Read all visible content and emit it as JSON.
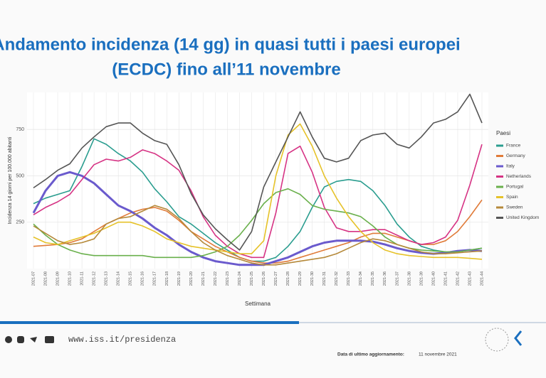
{
  "chart_data": {
    "type": "line",
    "title": [
      "Andamento incidenza (14 gg) in quasi tutti i paesi europei",
      "(ECDC) fino all’11 novembre"
    ],
    "y_label": "Incidenza 14 giorni per 100.000 abitanti",
    "x_label": "Settimana",
    "legend_title": "Paesi",
    "grid": true,
    "ylim": [
      0,
      950
    ],
    "yticks": [
      250,
      500,
      750
    ],
    "categories": [
      "2021-07",
      "2021-08",
      "2021-09",
      "2021-10",
      "2021-11",
      "2021-12",
      "2021-13",
      "2021-14",
      "2021-15",
      "2021-16",
      "2021-17",
      "2021-18",
      "2021-19",
      "2021-20",
      "2021-21",
      "2021-22",
      "2021-23",
      "2021-24",
      "2021-25",
      "2021-26",
      "2021-27",
      "2021-28",
      "2021-29",
      "2021-30",
      "2021-31",
      "2021-32",
      "2021-33",
      "2021-34",
      "2021-35",
      "2021-36",
      "2021-37",
      "2021-38",
      "2021-39",
      "2021-40",
      "2021-41",
      "2021-42",
      "2021-43",
      "2021-44"
    ],
    "series": [
      {
        "name": "France",
        "color": "#2a9d8f",
        "values": [
          350,
          380,
          400,
          420,
          550,
          700,
          670,
          620,
          580,
          520,
          430,
          360,
          280,
          240,
          190,
          140,
          100,
          60,
          40,
          40,
          60,
          120,
          200,
          330,
          440,
          470,
          480,
          470,
          420,
          340,
          240,
          170,
          120,
          100,
          90,
          90,
          100,
          110
        ]
      },
      {
        "name": "Germany",
        "color": "#e07b39",
        "values": [
          120,
          125,
          130,
          140,
          160,
          200,
          240,
          270,
          300,
          320,
          330,
          310,
          260,
          200,
          160,
          120,
          90,
          60,
          40,
          30,
          30,
          40,
          60,
          80,
          100,
          120,
          140,
          170,
          190,
          190,
          170,
          150,
          130,
          130,
          150,
          200,
          280,
          370
        ]
      },
      {
        "name": "Italy",
        "color": "#6a5acd",
        "values": [
          300,
          420,
          500,
          520,
          500,
          460,
          400,
          340,
          310,
          270,
          220,
          180,
          130,
          90,
          60,
          40,
          30,
          20,
          20,
          20,
          40,
          60,
          90,
          120,
          140,
          150,
          150,
          150,
          145,
          130,
          110,
          95,
          85,
          80,
          85,
          95,
          100,
          95
        ]
      },
      {
        "name": "Netherlands",
        "color": "#d63384",
        "values": [
          290,
          330,
          360,
          400,
          480,
          560,
          590,
          580,
          600,
          640,
          620,
          580,
          530,
          420,
          280,
          180,
          120,
          80,
          60,
          60,
          300,
          620,
          660,
          520,
          330,
          220,
          200,
          200,
          210,
          210,
          180,
          150,
          130,
          140,
          170,
          260,
          450,
          670
        ]
      },
      {
        "name": "Portugal",
        "color": "#6ab04c",
        "values": [
          240,
          180,
          130,
          100,
          80,
          70,
          70,
          70,
          70,
          70,
          60,
          60,
          60,
          60,
          70,
          90,
          120,
          180,
          260,
          350,
          410,
          430,
          400,
          340,
          320,
          310,
          300,
          280,
          230,
          170,
          130,
          110,
          100,
          95,
          90,
          90,
          100,
          110
        ]
      },
      {
        "name": "Spain",
        "color": "#e6c229",
        "values": [
          170,
          140,
          130,
          150,
          170,
          190,
          220,
          250,
          250,
          230,
          200,
          160,
          140,
          120,
          110,
          100,
          90,
          80,
          80,
          150,
          500,
          720,
          780,
          660,
          500,
          380,
          280,
          200,
          140,
          100,
          80,
          70,
          65,
          60,
          60,
          60,
          55,
          50
        ]
      },
      {
        "name": "Sweden",
        "color": "#b5893a",
        "values": [
          230,
          190,
          150,
          130,
          140,
          160,
          240,
          270,
          280,
          310,
          340,
          320,
          270,
          200,
          140,
          100,
          70,
          50,
          30,
          20,
          20,
          30,
          40,
          50,
          60,
          80,
          110,
          140,
          160,
          150,
          130,
          110,
          90,
          80,
          80,
          85,
          90,
          95
        ]
      },
      {
        "name": "United Kingdom",
        "color": "#555555",
        "values": [
          435,
          480,
          530,
          565,
          650,
          710,
          765,
          785,
          785,
          730,
          690,
          670,
          560,
          405,
          290,
          215,
          155,
          100,
          200,
          440,
          575,
          710,
          845,
          710,
          595,
          575,
          595,
          690,
          720,
          730,
          670,
          650,
          710,
          785,
          805,
          845,
          940,
          785
        ]
      }
    ]
  },
  "footer": {
    "url": "www.iss.it/presidenza",
    "update_label": "Data di ultimo aggiornamento:",
    "update_date": "11 novembre 2021"
  }
}
